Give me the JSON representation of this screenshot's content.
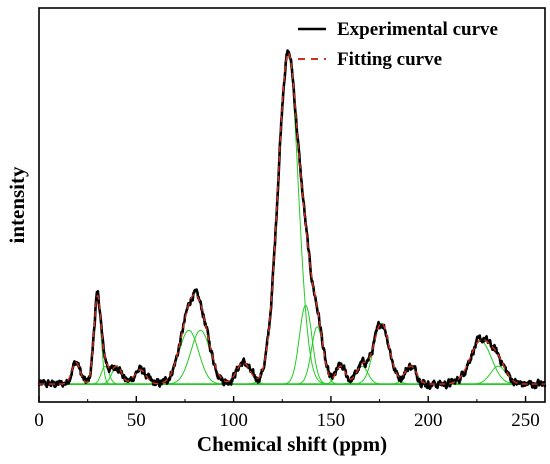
{
  "chart_data": {
    "type": "line",
    "xlabel": "Chemical shift (ppm)",
    "ylabel": "intensity",
    "xlim": [
      0,
      260
    ],
    "x_ticks": [
      0,
      50,
      100,
      150,
      200,
      250
    ],
    "x_tick_labels": [
      "0",
      "50",
      "100",
      "150",
      "200",
      "250"
    ],
    "ylim": [
      -0.05,
      1.05
    ],
    "y_ticks_shown": false,
    "grid": false,
    "legend_placement": "top-right",
    "series": [
      {
        "name": "Experimental curve",
        "color": "#000000",
        "style": "solid"
      },
      {
        "name": "Fitting curve",
        "color": "#d03020",
        "style": "dashed"
      }
    ],
    "component_color": "#22cc22",
    "components": [
      {
        "center": 19,
        "height": 0.06,
        "width": 2.2
      },
      {
        "center": 30,
        "height": 0.24,
        "width": 1.8
      },
      {
        "center": 34,
        "height": 0.05,
        "width": 2.0
      },
      {
        "center": 40,
        "height": 0.05,
        "width": 2.5
      },
      {
        "center": 52,
        "height": 0.04,
        "width": 3.0
      },
      {
        "center": 77,
        "height": 0.15,
        "width": 5.0
      },
      {
        "center": 83,
        "height": 0.15,
        "width": 5.0
      },
      {
        "center": 105,
        "height": 0.06,
        "width": 3.5
      },
      {
        "center": 128,
        "height": 0.92,
        "width": 5.2
      },
      {
        "center": 137,
        "height": 0.22,
        "width": 3.2
      },
      {
        "center": 143,
        "height": 0.16,
        "width": 3.0
      },
      {
        "center": 155,
        "height": 0.05,
        "width": 2.5
      },
      {
        "center": 166,
        "height": 0.05,
        "width": 3.0
      },
      {
        "center": 176,
        "height": 0.17,
        "width": 4.0
      },
      {
        "center": 191,
        "height": 0.05,
        "width": 3.0
      },
      {
        "center": 227,
        "height": 0.12,
        "width": 5.5
      },
      {
        "center": 236,
        "height": 0.05,
        "width": 4.0
      }
    ]
  }
}
